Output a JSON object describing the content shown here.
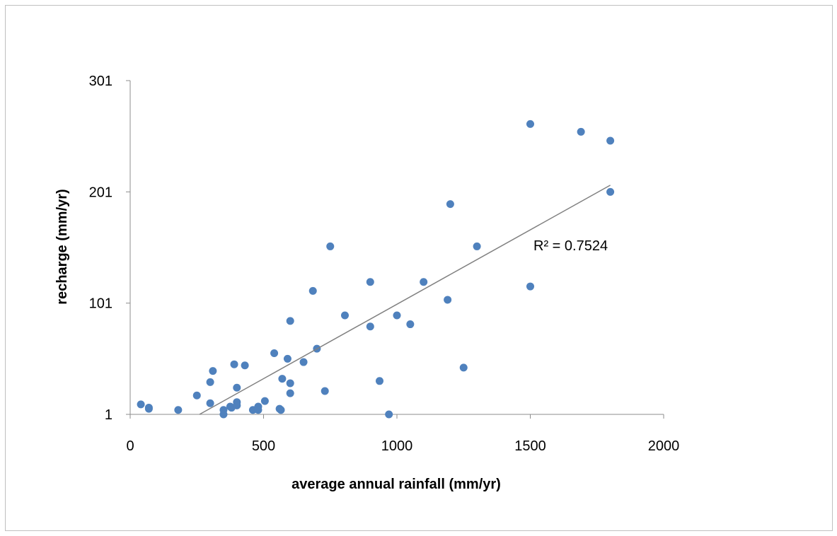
{
  "chart_data": {
    "type": "scatter",
    "xlabel": "average annual rainfall (mm/yr)",
    "ylabel": "recharge (mm/yr)",
    "xlim": [
      0,
      2000
    ],
    "ylim": [
      1,
      301
    ],
    "xticks": [
      0,
      500,
      1000,
      1500,
      2000
    ],
    "yticks": [
      1,
      101,
      201,
      301
    ],
    "grid": false,
    "marker_color": "#4f81bd",
    "trendline_color": "#808080",
    "annotation": "R² = 0.7524",
    "trendline": {
      "x": [
        260,
        1800
      ],
      "y": [
        1,
        207
      ]
    },
    "series": [
      {
        "x": [
          40,
          70,
          70,
          180,
          250,
          300,
          300,
          310,
          350,
          350,
          375,
          380,
          390,
          400,
          400,
          400,
          430,
          460,
          480,
          480,
          505,
          540,
          560,
          565,
          570,
          590,
          600,
          600,
          600,
          650,
          685,
          700,
          730,
          750,
          805,
          900,
          900,
          935,
          970,
          1000,
          1050,
          1100,
          1190,
          1200,
          1250,
          1300,
          1500,
          1500,
          1690,
          1800,
          1800
        ],
        "y": [
          10,
          7,
          6,
          5,
          18,
          11,
          30,
          40,
          5,
          1,
          8,
          7,
          46,
          25,
          12,
          9,
          45,
          5,
          8,
          5,
          13,
          56,
          6,
          5,
          33,
          51,
          29,
          20,
          85,
          48,
          112,
          60,
          22,
          152,
          90,
          120,
          80,
          31,
          1,
          90,
          82,
          120,
          104,
          190,
          43,
          152,
          116,
          262,
          255,
          247,
          201
        ]
      }
    ]
  }
}
